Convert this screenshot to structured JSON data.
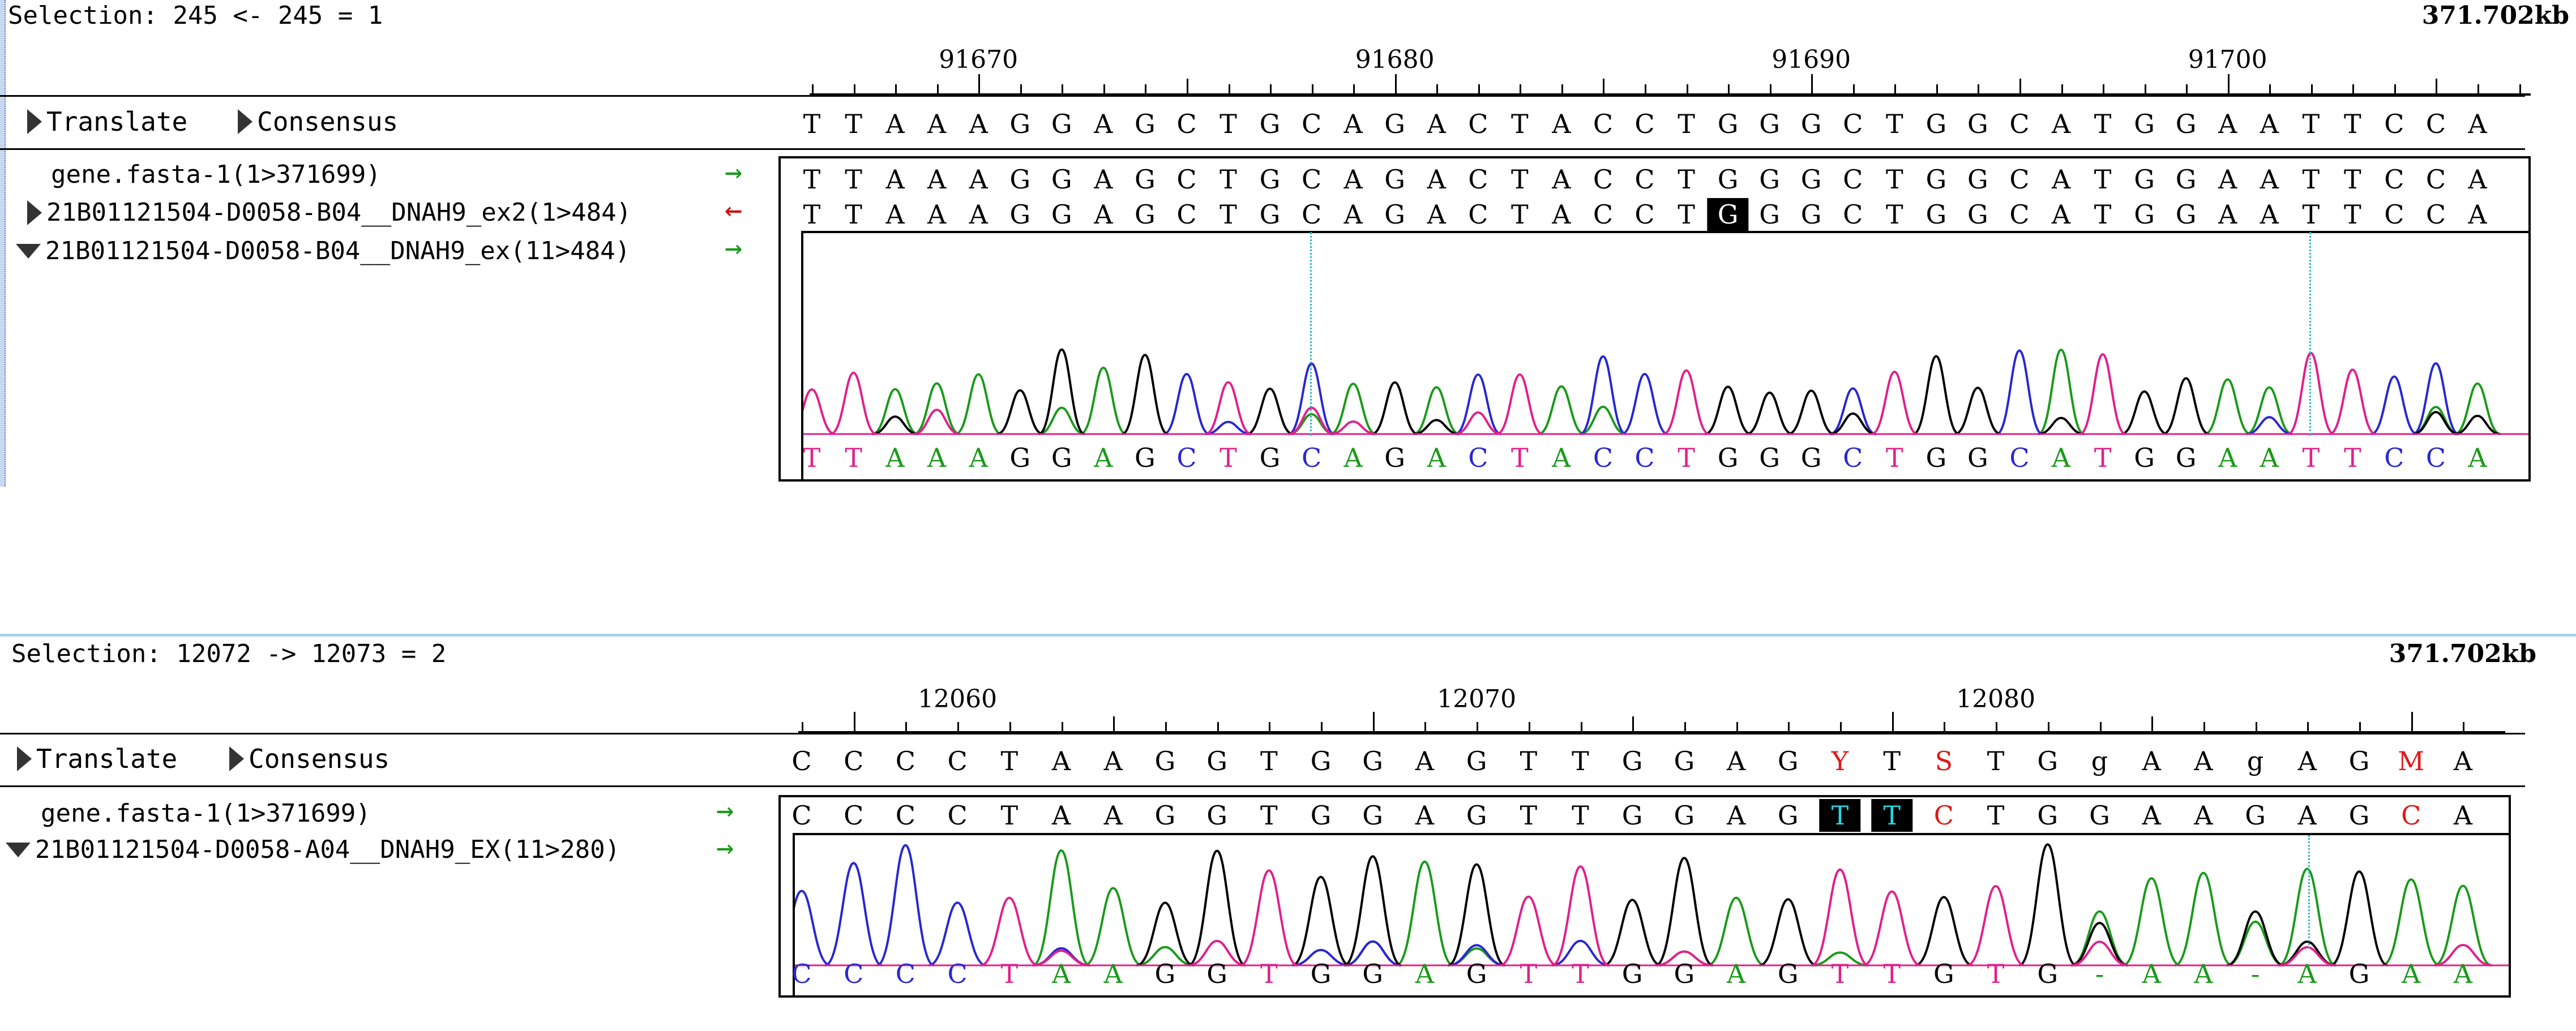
{
  "panel1": {
    "selection": "Selection: 245 <- 245 = 1",
    "length": "371.702kb",
    "ruler": {
      "labels": [
        "91670",
        "91680",
        "91690",
        "91700"
      ]
    },
    "controls": {
      "translate": "Translate",
      "consensus": "Consensus"
    },
    "consensus": "TTAAAGGAGCTGCAGACTACCTGGGCTGGCATGGAATTCCA",
    "sequences": [
      {
        "name": "gene.fasta-1(1>371699)",
        "arrow": "→",
        "arrow_color": "#1a9a1a",
        "bases": "TTAAAGGAGCTGCAGACTACCTGGGCTGGCATGGAATTCCA",
        "highlight": []
      },
      {
        "name": "21B01121504-D0058-B04__DNAH9_ex2(1>484)",
        "arrow": "←",
        "arrow_color": "#d01010",
        "bases": "TTAAAGGAGCTGCAGACTACCTGGGCTGGCATGGAATTCCA",
        "highlight": [
          22
        ]
      },
      {
        "name": "21B01121504-D0058-B04__DNAH9_ex(11>484)",
        "arrow": "→",
        "arrow_color": "#1a9a1a"
      }
    ],
    "basecalls": "TTAAAGGAGCTGCAGACTACCTGGGCTGGCATGGAATTCCA"
  },
  "panel2": {
    "selection": "Selection: 12072 -> 12073 = 2",
    "length": "371.702kb",
    "ruler": {
      "labels": [
        "12060",
        "12070",
        "12080"
      ]
    },
    "controls": {
      "translate": "Translate",
      "consensus": "Consensus"
    },
    "consensus": "CCCCTAAGGTGGAGTTGGAGYTSTGgAAgAGMA",
    "sequences": [
      {
        "name": "gene.fasta-1(1>371699)",
        "arrow": "→",
        "arrow_color": "#1a9a1a",
        "bases": "CCCCTAAGGTGGAGTTGGAGTTCTGGAAGAGCA",
        "highlight": [
          20,
          21
        ]
      },
      {
        "name": "21B01121504-D0058-A04__DNAH9_EX(11>280)",
        "arrow": "→",
        "arrow_color": "#1a9a1a"
      }
    ],
    "basecalls": "CCCCTAAGGTGGAGTTGGAGTTGTG-AA-AGAA"
  },
  "colors": {
    "A": "#1a9a1a",
    "C": "#2828d0",
    "G": "#000000",
    "T": "#e0208c",
    "other": "#e01818",
    "gap": "#1a9a1a"
  }
}
